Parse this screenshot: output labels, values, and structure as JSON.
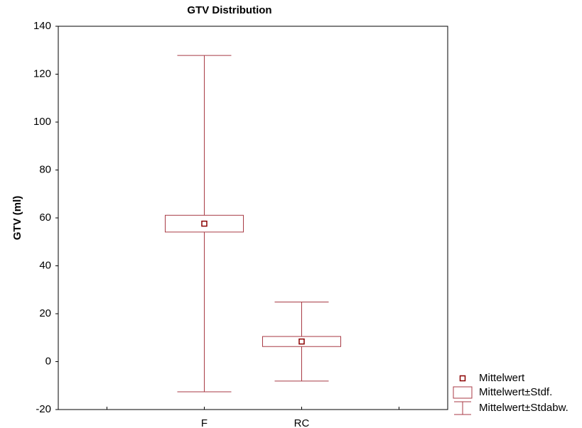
{
  "chart_data": {
    "type": "meanbox",
    "title": "GTV Distribution",
    "y_label": "GTV (ml)",
    "categories": [
      null,
      "F",
      "RC",
      null
    ],
    "mean": [
      null,
      57.6,
      8.4,
      null
    ],
    "stderr": [
      null,
      3.5,
      2.1,
      null
    ],
    "stdev": [
      null,
      70.2,
      16.5,
      null
    ],
    "legend": [
      "Mittelwert",
      "Mittelwert±Stdf.",
      "Mittelwert±Stdabw."
    ],
    "color": "#a83a44",
    "marker_color": "#8b0000",
    "ylim": [
      -20,
      140
    ],
    "yticks": [
      -20,
      0,
      20,
      40,
      60,
      80,
      100,
      120,
      140
    ],
    "grid": false
  }
}
